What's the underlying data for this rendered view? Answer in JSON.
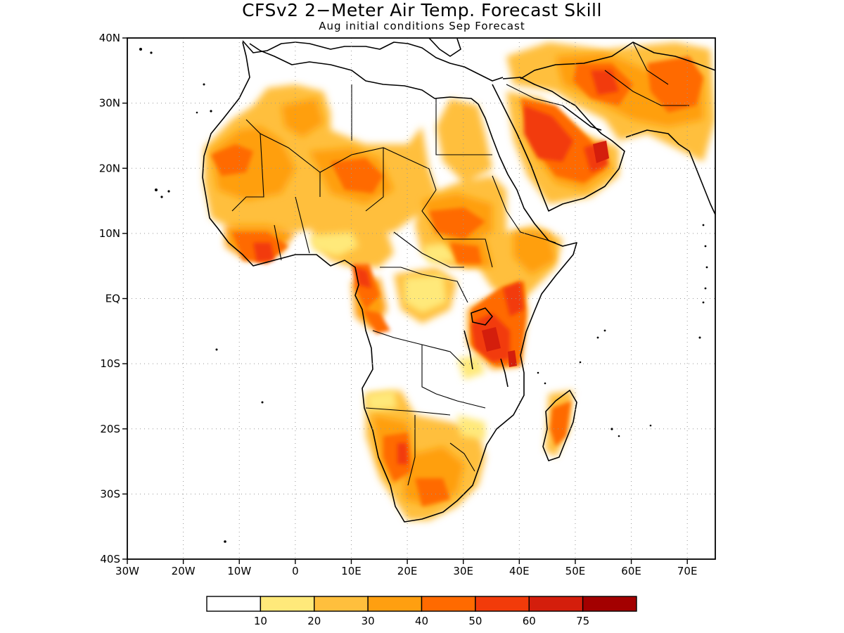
{
  "title": "CFSv2 2−Meter Air Temp. Forecast Skill",
  "subtitle": "Aug initial conditions  Sep Forecast",
  "map": {
    "lon_range": [
      -30,
      75
    ],
    "lat_range": [
      -40,
      40
    ],
    "lon_ticks": [
      "30W",
      "20W",
      "10W",
      "0",
      "10E",
      "20E",
      "30E",
      "40E",
      "50E",
      "60E",
      "70E"
    ],
    "lat_ticks": [
      "40N",
      "30N",
      "20N",
      "10N",
      "EQ",
      "10S",
      "20S",
      "30S",
      "40S"
    ],
    "gridlines": "dotted",
    "coastline_color": "#000000"
  },
  "colorbar": {
    "labels": [
      "10",
      "20",
      "30",
      "40",
      "50",
      "60",
      "75"
    ],
    "colors": [
      "#ffffff",
      "#ffe97a",
      "#ffbf3d",
      "#ff9f10",
      "#ff6a00",
      "#f23b0a",
      "#d41e0c",
      "#a30000"
    ]
  }
}
